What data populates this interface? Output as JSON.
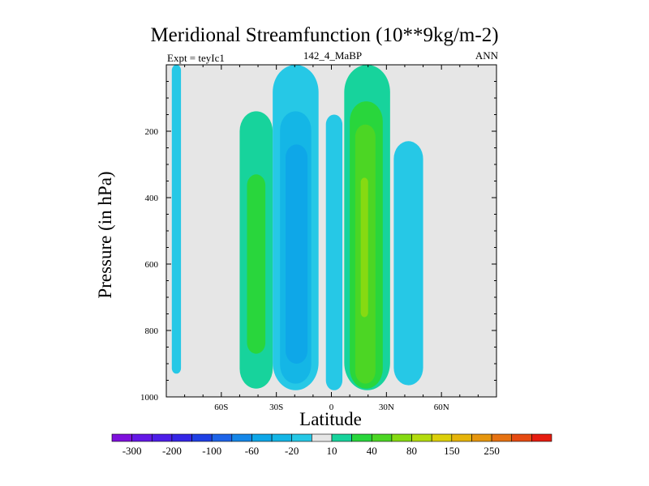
{
  "colors": {
    "background": "#e6e6e6",
    "frame": "#000000",
    "undefined_band": "#ffffff"
  },
  "chart_data": {
    "type": "heatmap",
    "subtype": "filled-contour",
    "title": "Meridional Streamfunction (10**9kg/m-2)",
    "subtitle_left": "Expt = teyIc1",
    "subtitle_center": "142_4_MaBP",
    "subtitle_right": "ANN",
    "xlabel": "Latitude",
    "ylabel": "Pressure (in hPa)",
    "xlim": [
      -90,
      90
    ],
    "ylim": [
      1000,
      0
    ],
    "x_ticks": [
      {
        "value": -60,
        "label": "60S"
      },
      {
        "value": -30,
        "label": "30S"
      },
      {
        "value": 0,
        "label": "0"
      },
      {
        "value": 30,
        "label": "30N"
      },
      {
        "value": 60,
        "label": "60N"
      }
    ],
    "y_ticks": [
      {
        "value": 200,
        "label": "200"
      },
      {
        "value": 400,
        "label": "400"
      },
      {
        "value": 600,
        "label": "600"
      },
      {
        "value": 800,
        "label": "800"
      },
      {
        "value": 1000,
        "label": "1000"
      }
    ],
    "colorbar": {
      "colors": [
        "#7e10dc",
        "#6418e6",
        "#4d1ee8",
        "#3526e6",
        "#1f40e4",
        "#1e64e8",
        "#1587e8",
        "#0ea7e8",
        "#14b6e6",
        "#26c8e6",
        "#e6e6e6",
        "#17d39c",
        "#29d63c",
        "#4cd624",
        "#86da12",
        "#b4dc0e",
        "#dccf0a",
        "#e6b40a",
        "#e6960e",
        "#e67212",
        "#e64a12",
        "#e61c10"
      ],
      "labels": [
        {
          "text": "-300",
          "after_index": 0
        },
        {
          "text": "-200",
          "after_index": 2
        },
        {
          "text": "-100",
          "after_index": 4
        },
        {
          "text": "-60",
          "after_index": 6
        },
        {
          "text": "-20",
          "after_index": 8
        },
        {
          "text": "10",
          "after_index": 10
        },
        {
          "text": "40",
          "after_index": 12
        },
        {
          "text": "80",
          "after_index": 14
        },
        {
          "text": "150",
          "after_index": 16
        },
        {
          "text": "250",
          "after_index": 18
        }
      ]
    },
    "features": [
      {
        "name": "southern-polar-cell-negative",
        "level_index": 9,
        "lat": [
          -87,
          -82
        ],
        "pressure": [
          0,
          930
        ]
      },
      {
        "name": "southern-ferrel-cell-positive",
        "level_index": 11,
        "lat": [
          -50,
          -32
        ],
        "pressure": [
          140,
          975
        ]
      },
      {
        "name": "southern-ferrel-cell-core",
        "level_index": 12,
        "lat": [
          -46,
          -36
        ],
        "pressure": [
          330,
          870
        ]
      },
      {
        "name": "southern-hadley-cell-negative",
        "level_index": 9,
        "lat": [
          -32,
          -7
        ],
        "pressure": [
          0,
          980
        ]
      },
      {
        "name": "southern-hadley-cell-middle",
        "level_index": 8,
        "lat": [
          -28,
          -11
        ],
        "pressure": [
          140,
          960
        ]
      },
      {
        "name": "southern-hadley-cell-core",
        "level_index": 7,
        "lat": [
          -25,
          -13
        ],
        "pressure": [
          240,
          900
        ]
      },
      {
        "name": "equatorial-negative-sliver",
        "level_index": 9,
        "lat": [
          -3,
          6
        ],
        "pressure": [
          150,
          980
        ]
      },
      {
        "name": "northern-hadley-cell-positive",
        "level_index": 11,
        "lat": [
          7,
          32
        ],
        "pressure": [
          0,
          980
        ]
      },
      {
        "name": "northern-hadley-cell-middle",
        "level_index": 12,
        "lat": [
          10,
          28
        ],
        "pressure": [
          110,
          975
        ]
      },
      {
        "name": "northern-hadley-cell-core",
        "level_index": 13,
        "lat": [
          13,
          24
        ],
        "pressure": [
          180,
          960
        ]
      },
      {
        "name": "northern-hadley-cell-peak",
        "level_index": 14,
        "lat": [
          16,
          20
        ],
        "pressure": [
          340,
          760
        ]
      },
      {
        "name": "northern-ferrel-cell-negative",
        "level_index": 9,
        "lat": [
          34,
          50
        ],
        "pressure": [
          230,
          965
        ]
      }
    ]
  }
}
